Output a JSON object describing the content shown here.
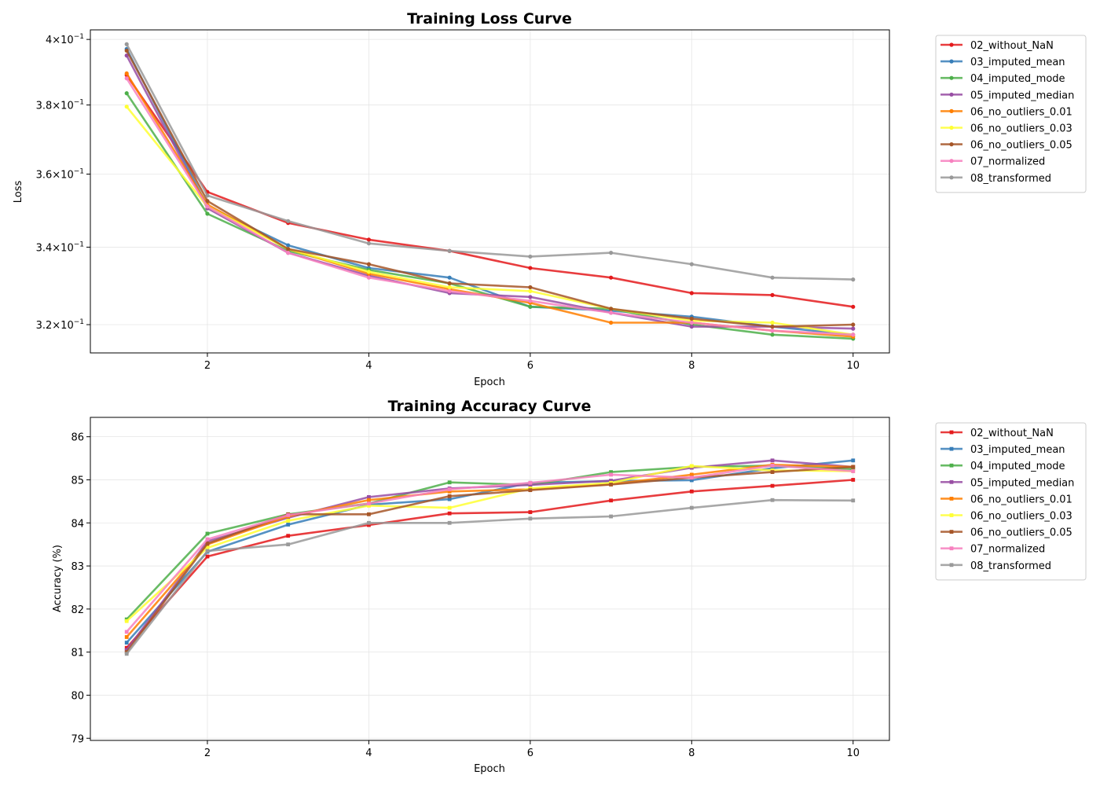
{
  "colors": {
    "02_without_NaN": "#e41a1c",
    "03_imputed_mean": "#377eb8",
    "04_imputed_mode": "#4daf4a",
    "05_imputed_median": "#984ea3",
    "06_no_outliers_0.01": "#ff7f00",
    "06_no_outliers_0.03": "#ffff33",
    "06_no_outliers_0.05": "#a65628",
    "07_normalized": "#f781bf",
    "08_transformed": "#999999"
  },
  "chart_data": [
    {
      "type": "line",
      "title": "Training Loss Curve",
      "xlabel": "Epoch",
      "ylabel": "Loss",
      "yscale": "log",
      "xlim": [
        0.55,
        10.45
      ],
      "ylim": [
        0.313,
        0.403
      ],
      "x_ticks": [
        2,
        4,
        6,
        8,
        10
      ],
      "x_tick_labels": [
        "2",
        "4",
        "6",
        "8",
        "10"
      ],
      "y_ticks": [
        0.32,
        0.34,
        0.36,
        0.38,
        0.4
      ],
      "y_tick_labels": [
        {
          "mantissa": "3.2",
          "base": "10",
          "exp": "−1"
        },
        {
          "mantissa": "3.4",
          "base": "10",
          "exp": "−1"
        },
        {
          "mantissa": "3.6",
          "base": "10",
          "exp": "−1"
        },
        {
          "mantissa": "3.8",
          "base": "10",
          "exp": "−1"
        },
        {
          "mantissa": "4",
          "base": "10",
          "exp": "−1"
        }
      ],
      "grid": true,
      "legend": "outside-right",
      "x": [
        1,
        2,
        3,
        4,
        5,
        6,
        7,
        8,
        9,
        10
      ],
      "series": [
        {
          "name": "02_without_NaN",
          "values": [
            0.389,
            0.355,
            0.3465,
            0.342,
            0.339,
            0.3345,
            0.332,
            0.328,
            0.3275,
            0.3245
          ]
        },
        {
          "name": "03_imputed_mean",
          "values": [
            0.397,
            0.351,
            0.3405,
            0.3345,
            0.332,
            0.3245,
            0.3235,
            0.322,
            0.3195,
            0.3175
          ]
        },
        {
          "name": "04_imputed_mode",
          "values": [
            0.3835,
            0.349,
            0.339,
            0.334,
            0.3305,
            0.3245,
            0.324,
            0.32,
            0.3175,
            0.3165
          ]
        },
        {
          "name": "05_imputed_median",
          "values": [
            0.395,
            0.3505,
            0.3385,
            0.3325,
            0.328,
            0.327,
            0.323,
            0.3195,
            0.3195,
            0.319
          ]
        },
        {
          "name": "06_no_outliers_0.01",
          "values": [
            0.3895,
            0.3515,
            0.3395,
            0.333,
            0.329,
            0.3255,
            0.3205,
            0.3205,
            0.3185,
            0.317
          ]
        },
        {
          "name": "06_no_outliers_0.03",
          "values": [
            0.3795,
            0.351,
            0.3395,
            0.3335,
            0.3295,
            0.3285,
            0.324,
            0.321,
            0.3205,
            0.3175
          ]
        },
        {
          "name": "06_no_outliers_0.05",
          "values": [
            0.3965,
            0.3525,
            0.3395,
            0.3355,
            0.3305,
            0.3295,
            0.324,
            0.3215,
            0.3195,
            0.32
          ]
        },
        {
          "name": "07_normalized",
          "values": [
            0.388,
            0.351,
            0.3385,
            0.332,
            0.3285,
            0.326,
            0.323,
            0.3205,
            0.3185,
            0.3175
          ]
        },
        {
          "name": "08_transformed",
          "values": [
            0.3985,
            0.354,
            0.347,
            0.341,
            0.339,
            0.3375,
            0.3385,
            0.3355,
            0.332,
            0.3315
          ]
        }
      ]
    },
    {
      "type": "line",
      "title": "Training Accuracy Curve",
      "xlabel": "Epoch",
      "ylabel": "Accuracy (%)",
      "xlim": [
        0.55,
        10.45
      ],
      "ylim": [
        78.95,
        86.45
      ],
      "x_ticks": [
        2,
        4,
        6,
        8,
        10
      ],
      "x_tick_labels": [
        "2",
        "4",
        "6",
        "8",
        "10"
      ],
      "y_ticks": [
        79,
        80,
        81,
        82,
        83,
        84,
        85,
        86
      ],
      "y_tick_labels": [
        "79",
        "80",
        "81",
        "82",
        "83",
        "84",
        "85",
        "86"
      ],
      "grid": true,
      "legend": "outside-right",
      "x": [
        1,
        2,
        3,
        4,
        5,
        6,
        7,
        8,
        9,
        10
      ],
      "series": [
        {
          "name": "02_without_NaN",
          "values": [
            81.1,
            83.22,
            83.7,
            83.95,
            84.22,
            84.25,
            84.52,
            84.73,
            84.86,
            85.0
          ]
        },
        {
          "name": "03_imputed_mean",
          "values": [
            81.22,
            83.33,
            83.96,
            84.42,
            84.55,
            84.93,
            84.97,
            84.99,
            85.27,
            85.45
          ]
        },
        {
          "name": "04_imputed_mode",
          "values": [
            81.76,
            83.75,
            84.2,
            84.45,
            84.94,
            84.88,
            85.18,
            85.3,
            85.33,
            85.25
          ]
        },
        {
          "name": "05_imputed_median",
          "values": [
            81.05,
            83.57,
            84.12,
            84.6,
            84.8,
            84.88,
            84.98,
            85.28,
            85.45,
            85.3
          ]
        },
        {
          "name": "06_no_outliers_0.01",
          "values": [
            81.35,
            83.5,
            84.15,
            84.53,
            84.73,
            84.78,
            84.9,
            85.12,
            85.35,
            85.3
          ]
        },
        {
          "name": "06_no_outliers_0.03",
          "values": [
            81.72,
            83.42,
            84.05,
            84.4,
            84.35,
            84.8,
            84.93,
            85.32,
            85.22,
            85.2
          ]
        },
        {
          "name": "06_no_outliers_0.05",
          "values": [
            81.0,
            83.52,
            84.2,
            84.2,
            84.62,
            84.76,
            84.89,
            85.05,
            85.18,
            85.3
          ]
        },
        {
          "name": "07_normalized",
          "values": [
            81.47,
            83.62,
            84.18,
            84.45,
            84.78,
            84.93,
            85.12,
            85.05,
            85.33,
            85.2
          ]
        },
        {
          "name": "08_transformed",
          "values": [
            80.96,
            83.35,
            83.5,
            84.0,
            84.0,
            84.1,
            84.15,
            84.35,
            84.53,
            84.52
          ]
        }
      ]
    }
  ]
}
